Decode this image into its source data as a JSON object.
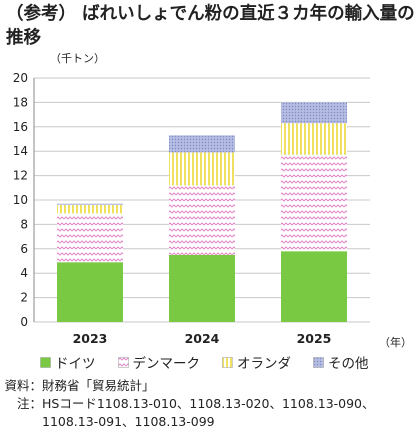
{
  "title": "（参考） ばれいしょでん粉の直近３カ年の輸入量の推移",
  "chart_data": {
    "type": "bar",
    "stacked": true,
    "unit_label": "（千トン）",
    "xunit_label": "（年）",
    "categories": [
      "2023",
      "2024",
      "2025"
    ],
    "ylim": [
      0,
      20
    ],
    "yticks": [
      0,
      2,
      4,
      6,
      8,
      10,
      12,
      14,
      16,
      18,
      20
    ],
    "grid": true,
    "legend_position": "bottom",
    "series": [
      {
        "name": "ドイツ",
        "values": [
          4.9,
          5.5,
          5.8
        ],
        "color": "#7ac943",
        "pattern": "solid"
      },
      {
        "name": "デンマーク",
        "values": [
          4.0,
          5.7,
          7.9
        ],
        "color": "#e8a8d8",
        "pattern": "zigzag"
      },
      {
        "name": "オランダ",
        "values": [
          0.7,
          2.7,
          2.6
        ],
        "color": "#f0e060",
        "pattern": "vertical"
      },
      {
        "name": "その他",
        "values": [
          0.1,
          1.4,
          1.7
        ],
        "color": "#9aa4d4",
        "pattern": "dots"
      }
    ]
  },
  "notes": [
    {
      "key": "資料：",
      "text": "財務省「貿易統計」"
    },
    {
      "key": "注：",
      "text": "HSコード1108.13-010、1108.13-020、1108.13-090、1108.13-091、1108.13-099"
    }
  ]
}
